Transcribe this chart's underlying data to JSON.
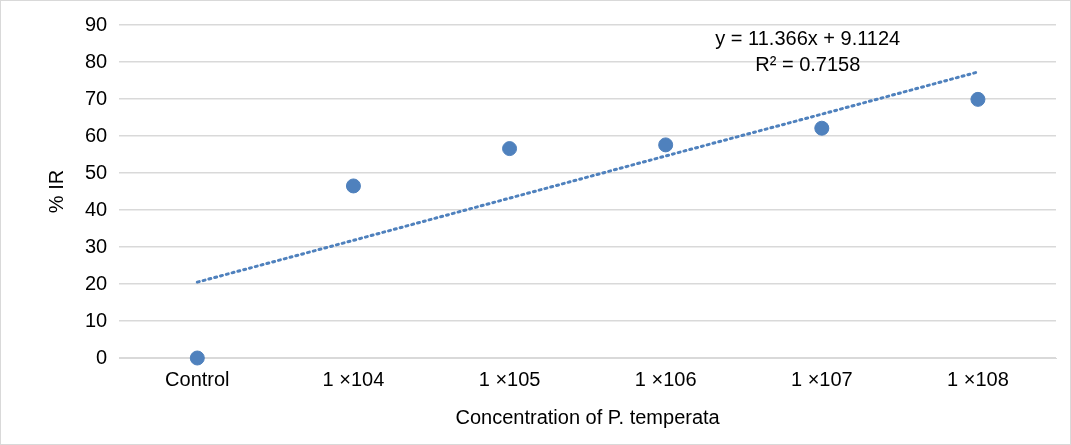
{
  "chart_data": {
    "type": "scatter",
    "categories": [
      "Control",
      "1 ×104",
      "1 ×105",
      "1 ×106",
      "1 ×107",
      "1 ×108"
    ],
    "series": [
      {
        "color": "#4f81bd",
        "values": [
          0,
          46.5,
          56.6,
          57.6,
          62.1,
          69.9
        ],
        "marker": "circle"
      },
      {
        "type": "line",
        "color": "#4f81bd",
        "x": [
          "Control",
          "1 ×104",
          "1 ×105",
          "1 ×106",
          "1 ×107",
          "1 ×108"
        ],
        "values": [
          20.5,
          31.8,
          43.2,
          54.6,
          65.9,
          77.3
        ],
        "line_style": "dotted",
        "marker": "none"
      }
    ],
    "xlabel": "Concentration of P. temperata",
    "ylabel": "% IR",
    "ylim": [
      0,
      90
    ],
    "yticks": [
      0,
      10,
      20,
      30,
      40,
      50,
      60,
      70,
      80,
      90
    ],
    "grid": "y",
    "legend": false,
    "annotations": [
      "y = 11.366x + 9.1124",
      "R² = 0.7158"
    ]
  }
}
